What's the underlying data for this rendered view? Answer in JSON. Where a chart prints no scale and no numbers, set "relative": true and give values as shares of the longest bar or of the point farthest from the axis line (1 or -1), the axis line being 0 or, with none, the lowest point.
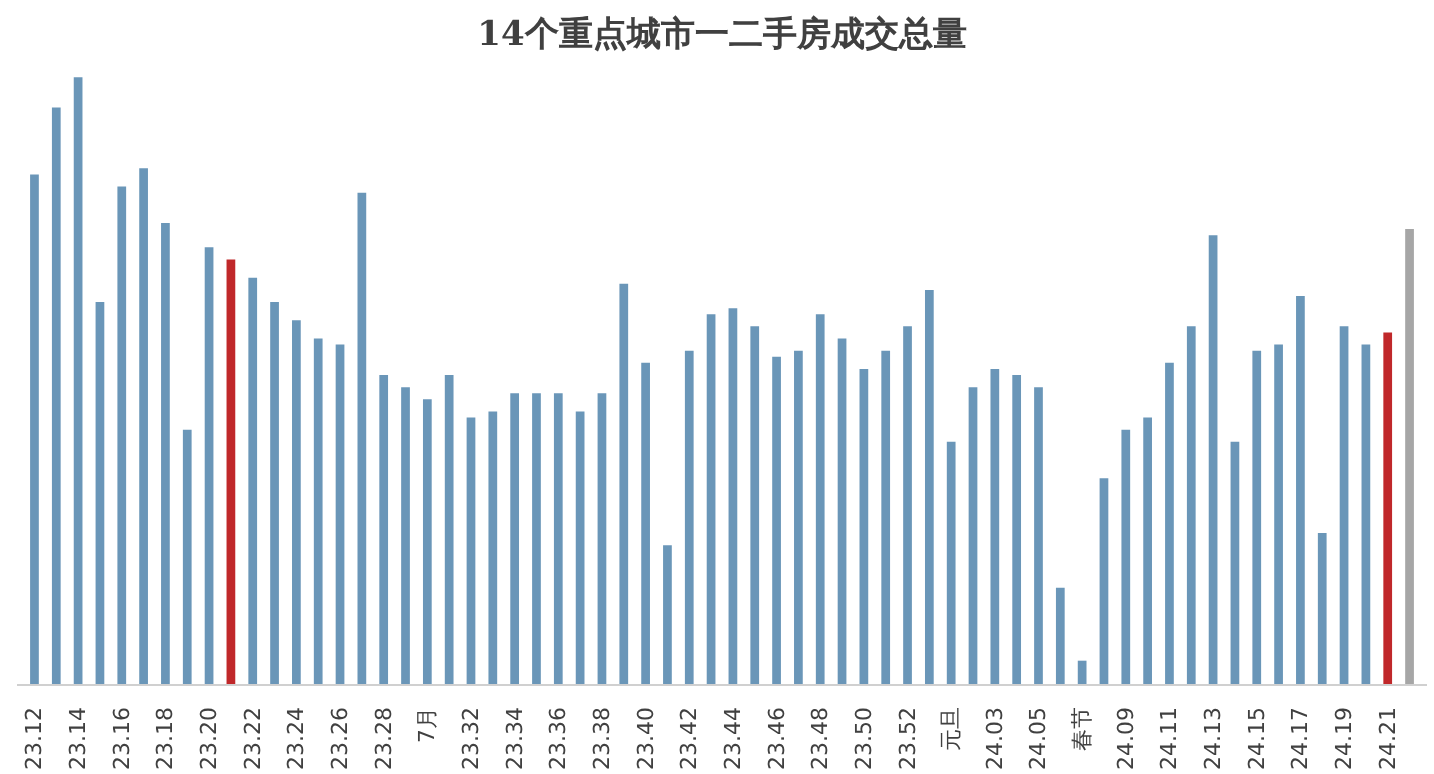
{
  "chart_data": {
    "type": "bar",
    "title": "14个重点城市一二手房成交总量",
    "relative": true,
    "grid": false,
    "categories": [
      "23.12",
      null,
      "23.14",
      null,
      "23.16",
      null,
      "23.18",
      null,
      "23.20",
      null,
      "23.22",
      null,
      "23.24",
      null,
      "23.26",
      null,
      "23.28",
      null,
      "7月",
      null,
      "23.32",
      null,
      "23.34",
      null,
      "23.36",
      null,
      "23.38",
      null,
      "23.40",
      null,
      "23.42",
      null,
      "23.44",
      null,
      "23.46",
      null,
      "23.48",
      null,
      "23.50",
      null,
      "23.52",
      null,
      "元旦",
      null,
      "24.03",
      null,
      "24.05",
      null,
      "春节",
      null,
      "24.09",
      null,
      "24.11",
      null,
      "24.13",
      null,
      "24.15",
      null,
      "24.17",
      null,
      "24.19",
      null,
      "24.21",
      null
    ],
    "values": [
      0.84,
      0.95,
      1.0,
      0.63,
      0.82,
      0.85,
      0.76,
      0.42,
      0.72,
      0.7,
      0.67,
      0.63,
      0.6,
      0.57,
      0.56,
      0.81,
      0.51,
      0.49,
      0.47,
      0.51,
      0.44,
      0.45,
      0.48,
      0.48,
      0.48,
      0.45,
      0.48,
      0.66,
      0.53,
      0.23,
      0.55,
      0.61,
      0.62,
      0.59,
      0.54,
      0.55,
      0.61,
      0.57,
      0.52,
      0.55,
      0.59,
      0.65,
      0.4,
      0.49,
      0.52,
      0.51,
      0.49,
      0.16,
      0.04,
      0.34,
      0.42,
      0.44,
      0.53,
      0.59,
      0.74,
      0.4,
      0.55,
      0.56,
      0.64,
      0.25,
      0.59,
      0.56,
      0.58,
      0.75
    ],
    "colors": [
      "#6a96b8",
      "#6a96b8",
      "#6a96b8",
      "#6a96b8",
      "#6a96b8",
      "#6a96b8",
      "#6a96b8",
      "#6a96b8",
      "#6a96b8",
      "#c0282a",
      "#6a96b8",
      "#6a96b8",
      "#6a96b8",
      "#6a96b8",
      "#6a96b8",
      "#6a96b8",
      "#6a96b8",
      "#6a96b8",
      "#6a96b8",
      "#6a96b8",
      "#6a96b8",
      "#6a96b8",
      "#6a96b8",
      "#6a96b8",
      "#6a96b8",
      "#6a96b8",
      "#6a96b8",
      "#6a96b8",
      "#6a96b8",
      "#6a96b8",
      "#6a96b8",
      "#6a96b8",
      "#6a96b8",
      "#6a96b8",
      "#6a96b8",
      "#6a96b8",
      "#6a96b8",
      "#6a96b8",
      "#6a96b8",
      "#6a96b8",
      "#6a96b8",
      "#6a96b8",
      "#6a96b8",
      "#6a96b8",
      "#6a96b8",
      "#6a96b8",
      "#6a96b8",
      "#6a96b8",
      "#6a96b8",
      "#6a96b8",
      "#6a96b8",
      "#6a96b8",
      "#6a96b8",
      "#6a96b8",
      "#6a96b8",
      "#6a96b8",
      "#6a96b8",
      "#6a96b8",
      "#6a96b8",
      "#6a96b8",
      "#6a96b8",
      "#6a96b8",
      "#c0282a",
      "#a6a6a6"
    ]
  }
}
